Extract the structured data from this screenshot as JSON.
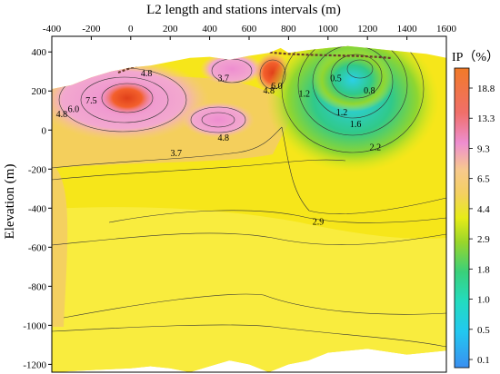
{
  "chart_data": {
    "type": "heatmap",
    "title": "L2 length and stations intervals (m)",
    "xlabel": "",
    "ylabel": "Elevation (m)",
    "x_ticks": [
      -400,
      -200,
      0,
      200,
      400,
      600,
      800,
      1000,
      1200,
      1400,
      1600
    ],
    "y_ticks": [
      400,
      200,
      0,
      -200,
      -400,
      -600,
      -800,
      -1000,
      -1200
    ],
    "xlim": [
      -400,
      1600
    ],
    "ylim": [
      -1240,
      480
    ],
    "x_axis_position": "top",
    "colorbar": {
      "title": "IP（%）",
      "position": "right",
      "levels": [
        {
          "value": "0.1",
          "color": "#3aa0f0"
        },
        {
          "value": "0.5",
          "color": "#21d8e6"
        },
        {
          "value": "1.0",
          "color": "#33cf8a"
        },
        {
          "value": "1.8",
          "color": "#8ed62a"
        },
        {
          "value": "2.9",
          "color": "#f6f112"
        },
        {
          "value": "4.4",
          "color": "#f7c98d"
        },
        {
          "value": "6.5",
          "color": "#ee8ed0"
        },
        {
          "value": "9.3",
          "color": "#f06f6a"
        },
        {
          "value": "13.3",
          "color": "#f3602c"
        },
        {
          "value": "18.8",
          "color": "#f17a28"
        }
      ]
    },
    "contour_labels": [
      {
        "text": "4.8",
        "x": 80,
        "y": 290
      },
      {
        "text": "3.7",
        "x": 470,
        "y": 265
      },
      {
        "text": "4.8",
        "x": -350,
        "y": 80
      },
      {
        "text": "6.0",
        "x": -290,
        "y": 105
      },
      {
        "text": "7.5",
        "x": -200,
        "y": 150
      },
      {
        "text": "4.8",
        "x": 470,
        "y": -40
      },
      {
        "text": "3.7",
        "x": 230,
        "y": -120
      },
      {
        "text": "4.8",
        "x": 700,
        "y": 200
      },
      {
        "text": "6.0",
        "x": 740,
        "y": 225
      },
      {
        "text": "1.2",
        "x": 880,
        "y": 185
      },
      {
        "text": "0.5",
        "x": 1040,
        "y": 265
      },
      {
        "text": "0.8",
        "x": 1210,
        "y": 200
      },
      {
        "text": "1.2",
        "x": 1070,
        "y": 90
      },
      {
        "text": "1.6",
        "x": 1140,
        "y": 30
      },
      {
        "text": "2.2",
        "x": 1240,
        "y": -90
      },
      {
        "text": "2.9",
        "x": 950,
        "y": -470
      }
    ],
    "grid": false
  }
}
